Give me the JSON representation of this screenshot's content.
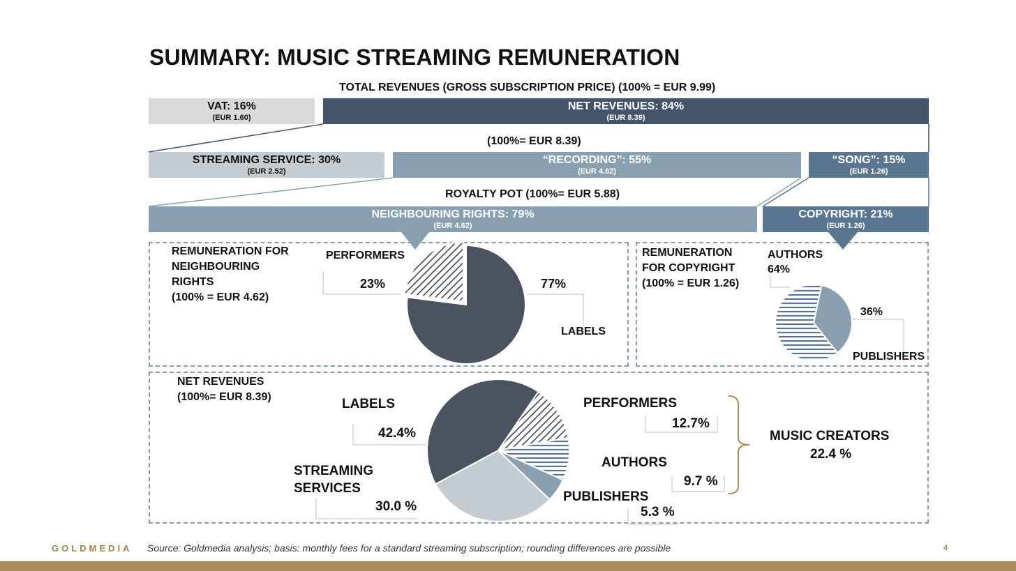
{
  "title": "SUMMARY: MUSIC STREAMING REMUNERATION",
  "total_caption": "TOTAL REVENUES (GROSS SUBSCRIPTION PRICE) (100% = EUR 9.99)",
  "net_caption": "(100%= EUR 8.39)",
  "royalty_caption": "ROYALTY POT (100%= EUR 5.88)",
  "bars": {
    "vat": {
      "label": "VAT: 16%",
      "sub": "(EUR 1.60)"
    },
    "net": {
      "label": "NET REVENUES: 84%",
      "sub": "(EUR 8.39)"
    },
    "streaming": {
      "label": "STREAMING SERVICE: 30%",
      "sub": "(EUR 2.52)"
    },
    "recording": {
      "label": "“RECORDING”: 55%",
      "sub": "(EUR 4.62)"
    },
    "song": {
      "label": "“SONG”: 15%",
      "sub": "(EUR 1.26)"
    },
    "neighbouring": {
      "label": "NEIGHBOURING RIGHTS: 79%",
      "sub": "(EUR 4.62)"
    },
    "copyright": {
      "label": "COPYRIGHT: 21%",
      "sub": "(EUR 1.26)"
    }
  },
  "panel_nr": {
    "title_lines": [
      "REMUNERATION FOR",
      "NEIGHBOURING",
      "RIGHTS",
      "(100% = EUR 4.62)"
    ],
    "performers_label": "PERFORMERS",
    "performers_value": "23%",
    "labels_label": "LABELS",
    "labels_value": "77%"
  },
  "panel_cr": {
    "title_lines": [
      "REMUNERATION",
      "FOR COPYRIGHT",
      "(100% = EUR 1.26)"
    ],
    "authors_label": "AUTHORS",
    "authors_value": "64%",
    "publishers_label": "PUBLISHERS",
    "publishers_value": "36%"
  },
  "panel_net": {
    "title_lines": [
      "NET REVENUES",
      "(100%= EUR 8.39)"
    ],
    "labels_label": "LABELS",
    "labels_value": "42.4%",
    "streaming_label_lines": [
      "STREAMING",
      "SERVICES"
    ],
    "streaming_value": "30.0 %",
    "performers_label": "PERFORMERS",
    "performers_value": "12.7%",
    "authors_label": "AUTHORS",
    "authors_value": "9.7 %",
    "publishers_label": "PUBLISHERS",
    "publishers_value": "5.3 %",
    "music_creators_label": "MUSIC CREATORS",
    "music_creators_value": "22.4 %"
  },
  "footer": {
    "brand": "GOLDMEDIA",
    "source": "Source: Goldmedia analysis; basis: monthly fees for a standard streaming subscription; rounding differences are possible",
    "page": "4"
  },
  "colors": {
    "vat": "#d9d9d9",
    "net": "#44546a",
    "streaming": "#c4ccd2",
    "recording": "#8aa0b0",
    "song": "#5a7690",
    "neighbouring": "#8aa0b0",
    "copyright": "#5a7690",
    "labels_slice": "#4b5361",
    "streaming_slice": "#c4ccd2",
    "publishers_slice": "#8aa0b0",
    "hatch": "#3d4450",
    "gold": "#a88d58"
  },
  "chart_data": [
    {
      "type": "pie",
      "title": "REMUNERATION FOR NEIGHBOURING RIGHTS (100% = EUR 4.62)",
      "categories": [
        "LABELS",
        "PERFORMERS"
      ],
      "values": [
        77,
        23
      ]
    },
    {
      "type": "pie",
      "title": "REMUNERATION FOR COPYRIGHT (100% = EUR 1.26)",
      "categories": [
        "AUTHORS",
        "PUBLISHERS"
      ],
      "values": [
        64,
        36
      ]
    },
    {
      "type": "pie",
      "title": "NET REVENUES (100%= EUR 8.39)",
      "categories": [
        "LABELS",
        "PERFORMERS",
        "AUTHORS",
        "PUBLISHERS",
        "STREAMING SERVICES"
      ],
      "values": [
        42.4,
        12.7,
        9.7,
        5.3,
        30.0
      ]
    }
  ]
}
